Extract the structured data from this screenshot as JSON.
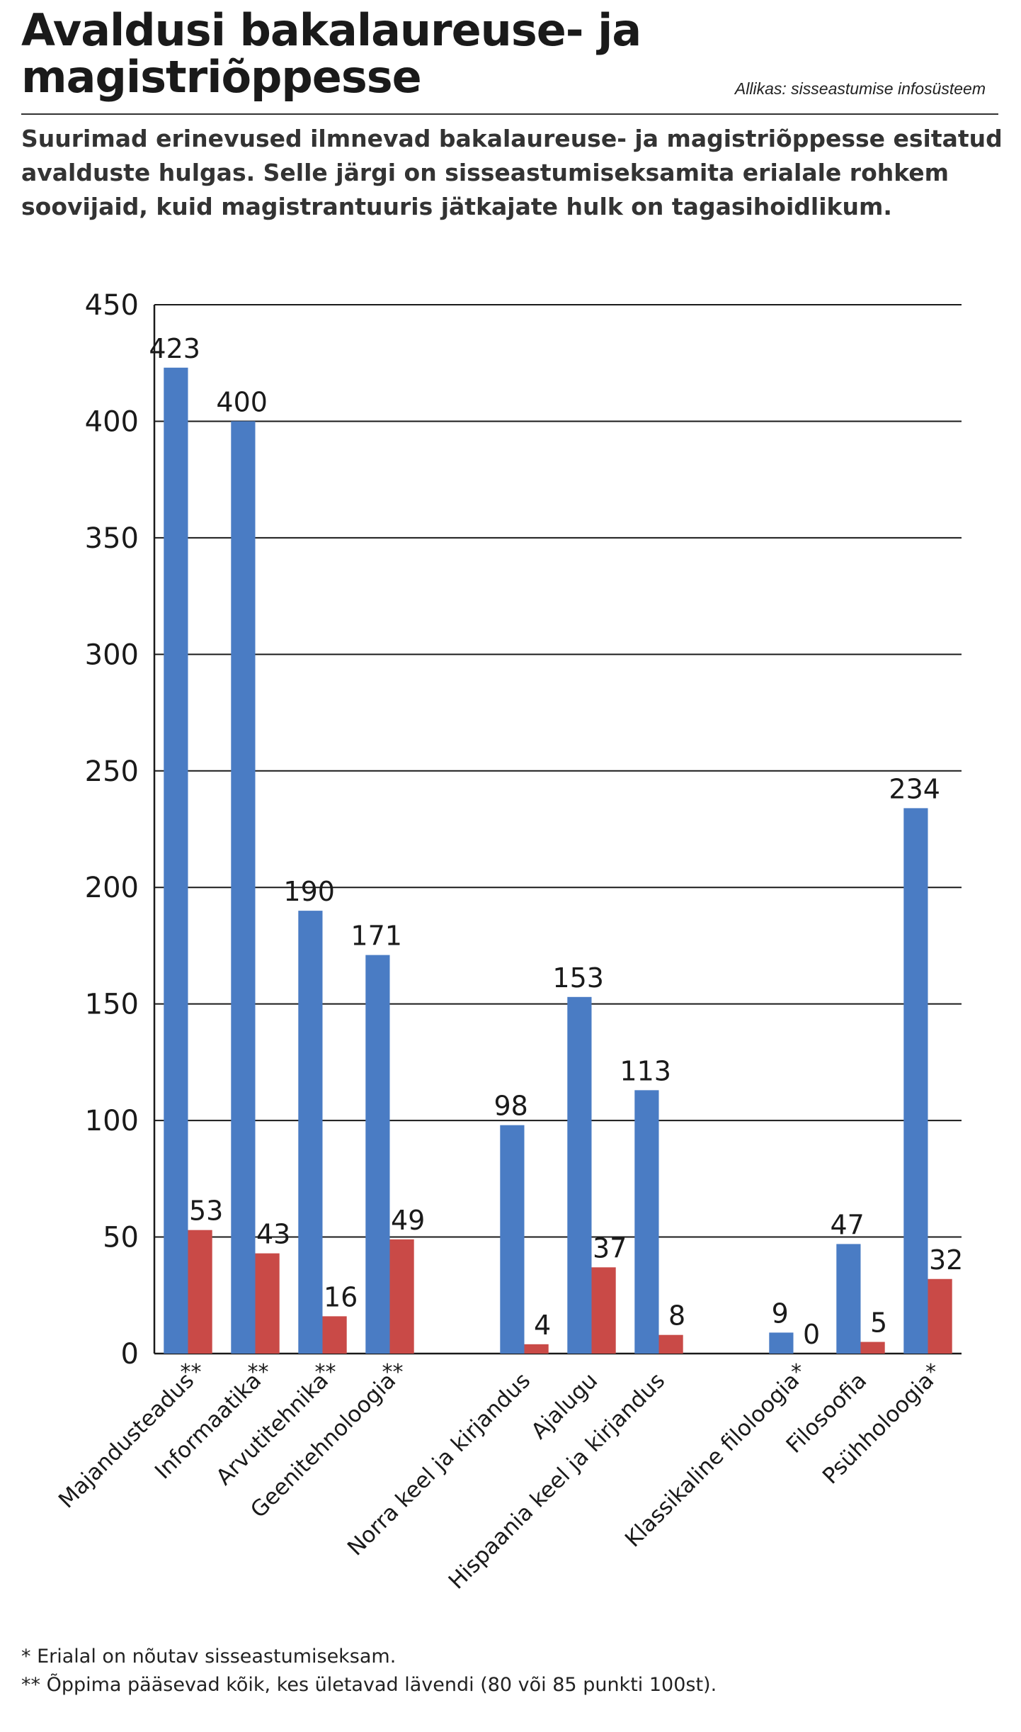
{
  "title": "Avaldusi bakalaureuse- ja magistriõppesse",
  "source": "Allikas: sisseastumise infosüsteem",
  "lead": "Suurimad erinevused ilmnevad bakalaureuse- ja magistriõppesse esitatud avalduste hulgas. Selle järgi on sisseastumiseksamita erialale rohkem soovijaid, kuid magistrantuuris jätkajate hulk on tagasihoidlikum.",
  "colors": {
    "bachelor": "#4a7cc4",
    "master": "#c94a47"
  },
  "chart_data": {
    "type": "bar",
    "title": "",
    "xlabel": "",
    "ylabel": "",
    "ylim": [
      0,
      450
    ],
    "yticks": [
      0,
      50,
      100,
      150,
      200,
      250,
      300,
      350,
      400,
      450
    ],
    "grid": true,
    "categories": [
      "Majandusteadus",
      "Informaatika",
      "Arvutitehnika",
      "Geenitehnoloogia",
      "Norra keel ja kirjandus",
      "Ajalugu",
      "Hispaania keel ja kirjandus",
      "Klassikaline filoloogia",
      "Filosoofia",
      "Psühholoogia"
    ],
    "markers": [
      "**",
      "**",
      "**",
      "**",
      "",
      "",
      "",
      "*",
      "",
      "*"
    ],
    "groups": [
      [
        0,
        1,
        2,
        3
      ],
      [
        4,
        5,
        6
      ],
      [
        7,
        8,
        9
      ]
    ],
    "series": [
      {
        "values": [
          423,
          400,
          190,
          171,
          98,
          153,
          113,
          9,
          47,
          234
        ]
      },
      {
        "values": [
          53,
          43,
          16,
          49,
          4,
          37,
          8,
          0,
          5,
          32
        ]
      }
    ]
  },
  "footnotes": [
    "* Erialal on nõutav sisseastumiseksam.",
    "** Õppima pääsevad kõik, kes ületavad lävendi (80 või 85 punkti 100st)."
  ]
}
